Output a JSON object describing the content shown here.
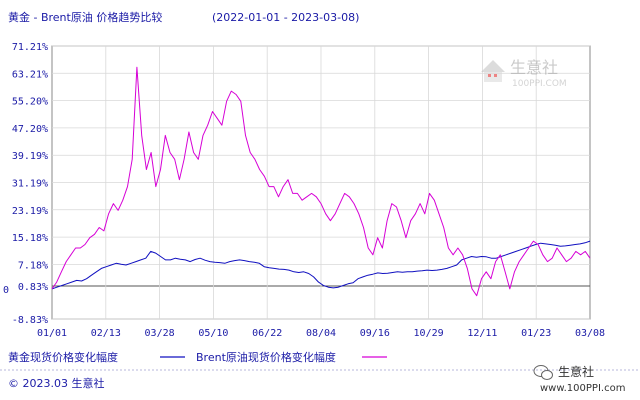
{
  "chart_data": {
    "type": "line",
    "title_parts": {
      "left": "黄金 - Brent原油 价格趋势比较",
      "dates": "(2022-01-01 - 2023-03-08)"
    },
    "y_ticks": [
      "71.21%",
      "63.21%",
      "55.20%",
      "47.20%",
      "39.19%",
      "31.19%",
      "23.19%",
      "15.18%",
      "7.18%",
      "0.83%",
      "-8.83%"
    ],
    "y_tick_values": [
      71.21,
      63.21,
      55.2,
      47.2,
      39.19,
      31.19,
      23.19,
      15.18,
      7.18,
      0.83,
      -8.83
    ],
    "y_zero_label": "0",
    "ylim": [
      -8.83,
      71.21
    ],
    "x_ticks": [
      "01/01",
      "02/13",
      "03/28",
      "05/10",
      "06/22",
      "08/04",
      "09/16",
      "10/29",
      "12/11",
      "01/23",
      "03/08"
    ],
    "grid": true,
    "series": [
      {
        "name": "黄金现货价格变化幅度",
        "color": "#1010c0",
        "values": [
          0,
          0.5,
          1,
          1.5,
          2,
          2.5,
          2.3,
          3,
          4,
          5,
          6,
          6.5,
          7,
          7.5,
          7.2,
          7,
          7.5,
          8,
          8.5,
          9,
          11,
          10.5,
          9.5,
          8.5,
          8.5,
          9,
          8.7,
          8.5,
          8,
          8.6,
          9,
          8.4,
          8,
          7.8,
          7.7,
          7.5,
          8,
          8.3,
          8.5,
          8.3,
          8,
          7.8,
          7.5,
          6.5,
          6.2,
          6,
          5.8,
          5.7,
          5.5,
          5,
          4.8,
          5,
          4.5,
          3.5,
          2,
          1,
          0.5,
          0.3,
          0.5,
          1,
          1.5,
          1.8,
          3,
          3.5,
          4,
          4.3,
          4.7,
          4.5,
          4.6,
          4.8,
          5,
          4.9,
          5,
          5,
          5.2,
          5.3,
          5.5,
          5.4,
          5.5,
          5.7,
          6,
          6.5,
          7,
          8.5,
          9,
          9.5,
          9.3,
          9.5,
          9.4,
          9,
          9,
          9.5,
          10,
          10.5,
          11,
          11.5,
          12,
          12.5,
          13,
          13.4,
          13.2,
          13,
          12.8,
          12.5,
          12.6,
          12.8,
          13,
          13.2,
          13.5,
          14
        ]
      },
      {
        "name": "Brent原油现货价格变化幅度",
        "color": "#d600d6",
        "values": [
          0,
          2,
          5,
          8,
          10,
          12,
          12,
          13,
          15,
          16,
          18,
          17,
          22,
          25,
          23,
          26,
          30,
          38,
          65,
          45,
          35,
          40,
          30,
          35,
          45,
          40,
          38,
          32,
          38,
          46,
          40,
          38,
          45,
          48,
          52,
          50,
          48,
          55,
          58,
          57,
          55,
          45,
          40,
          38,
          35,
          33,
          30,
          30,
          27,
          30,
          32,
          28,
          28,
          26,
          27,
          28,
          27,
          25,
          22,
          20,
          22,
          25,
          28,
          27,
          25,
          22,
          18,
          12,
          10,
          15,
          12,
          20,
          25,
          24,
          20,
          15,
          20,
          22,
          25,
          22,
          28,
          26,
          22,
          18,
          12,
          10,
          12,
          10,
          6,
          0,
          -2,
          3,
          5,
          3,
          8,
          10,
          5,
          0,
          5,
          8,
          10,
          12,
          14,
          13,
          10,
          8,
          9,
          12,
          10,
          8,
          9,
          11,
          10,
          11,
          9
        ]
      }
    ]
  },
  "watermark": {
    "name": "生意社",
    "url": "100PPI.COM"
  },
  "footer": {
    "copyright": "© 2023.03 生意社",
    "brand": "生意社",
    "url": "www.100PPI.com"
  }
}
